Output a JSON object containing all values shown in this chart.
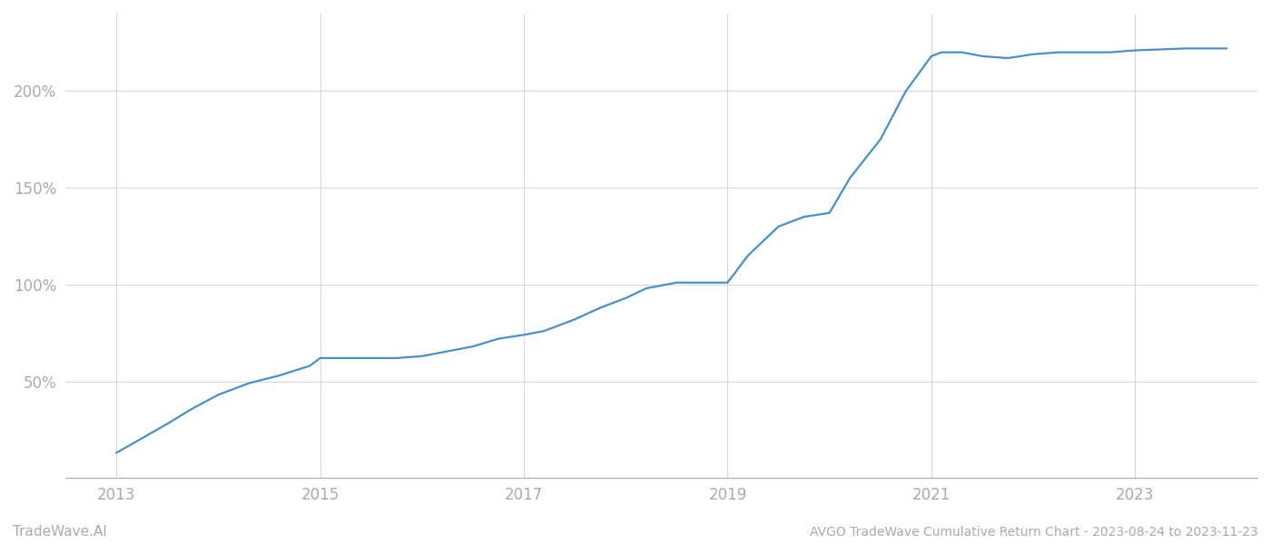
{
  "title": "AVGO TradeWave Cumulative Return Chart - 2023-08-24 to 2023-11-23",
  "watermark": "TradeWave.AI",
  "line_color": "#4a90c4",
  "background_color": "#ffffff",
  "grid_color": "#d0d0d0",
  "x_tick_years": [
    2013,
    2015,
    2017,
    2019,
    2021,
    2023
  ],
  "x_data": [
    2013.0,
    2013.2,
    2013.5,
    2013.75,
    2014.0,
    2014.3,
    2014.6,
    2014.9,
    2015.0,
    2015.2,
    2015.5,
    2015.75,
    2016.0,
    2016.2,
    2016.5,
    2016.75,
    2017.0,
    2017.2,
    2017.5,
    2017.75,
    2018.0,
    2018.2,
    2018.5,
    2018.75,
    2019.0,
    2019.2,
    2019.5,
    2019.75,
    2020.0,
    2020.2,
    2020.5,
    2020.75,
    2021.0,
    2021.1,
    2021.3,
    2021.5,
    2021.75,
    2022.0,
    2022.25,
    2022.5,
    2022.75,
    2023.0,
    2023.5,
    2023.9
  ],
  "y_data": [
    13,
    19,
    28,
    36,
    43,
    49,
    53,
    58,
    62,
    62,
    62,
    62,
    63,
    65,
    68,
    72,
    74,
    76,
    82,
    88,
    93,
    98,
    101,
    101,
    101,
    115,
    130,
    135,
    137,
    155,
    175,
    200,
    218,
    220,
    220,
    218,
    217,
    219,
    220,
    220,
    220,
    221,
    222,
    222
  ],
  "ytick_values": [
    50,
    100,
    150,
    200
  ],
  "ylim": [
    0,
    240
  ],
  "xlim": [
    2012.5,
    2024.2
  ],
  "tick_fontsize": 12,
  "title_fontsize": 10,
  "watermark_fontsize": 11,
  "line_width": 1.6
}
